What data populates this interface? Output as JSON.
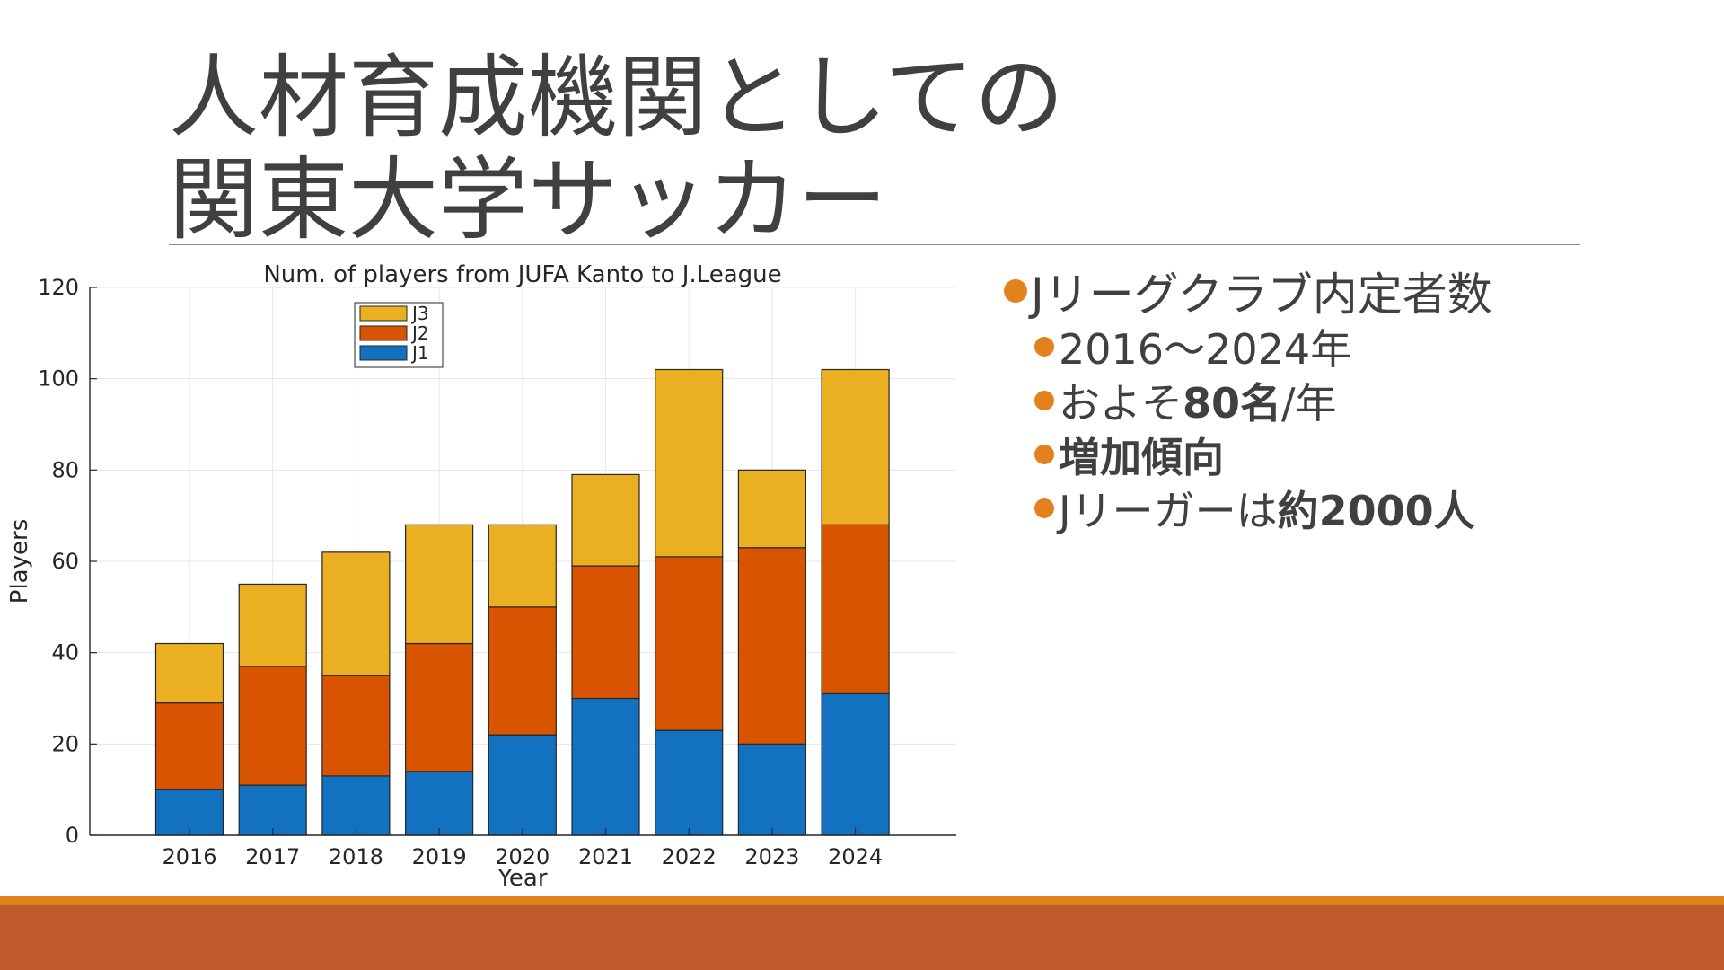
{
  "slide": {
    "title_line1": "人材育成機関としての",
    "title_line2": "関東大学サッカー"
  },
  "bullets": {
    "main": "Jリーグクラブ内定者数",
    "sub1": "2016～2024年",
    "sub2_prefix": "およそ",
    "sub2_bold": "80名",
    "sub2_suffix": "/年",
    "sub3": "増加傾向",
    "sub4_prefix": "Jリーガーは",
    "sub4_bold": "約2000人"
  },
  "colors": {
    "accent": "#e2811d",
    "footer": "#be5a2b",
    "footer_stripe": "#de841a",
    "J1": "#1372c0",
    "J2": "#d95400",
    "J3": "#ebb022"
  },
  "chart_data": {
    "type": "bar",
    "stacked": true,
    "title": "Num. of players from JUFA Kanto to J.League",
    "xlabel": "Year",
    "ylabel": "Players",
    "ylim": [
      0,
      120
    ],
    "yticks": [
      0,
      20,
      40,
      60,
      80,
      100,
      120
    ],
    "grid": true,
    "legend_position": "top-center",
    "categories": [
      "2016",
      "2017",
      "2018",
      "2019",
      "2020",
      "2021",
      "2022",
      "2023",
      "2024"
    ],
    "series": [
      {
        "name": "J1",
        "color": "#1372c0",
        "values": [
          10,
          11,
          13,
          14,
          22,
          30,
          23,
          20,
          31
        ]
      },
      {
        "name": "J2",
        "color": "#d95400",
        "values": [
          19,
          26,
          22,
          28,
          28,
          29,
          38,
          43,
          37
        ]
      },
      {
        "name": "J3",
        "color": "#ebb022",
        "values": [
          13,
          18,
          27,
          26,
          18,
          20,
          41,
          17,
          34
        ]
      }
    ],
    "legend_order": [
      "J3",
      "J2",
      "J1"
    ]
  }
}
